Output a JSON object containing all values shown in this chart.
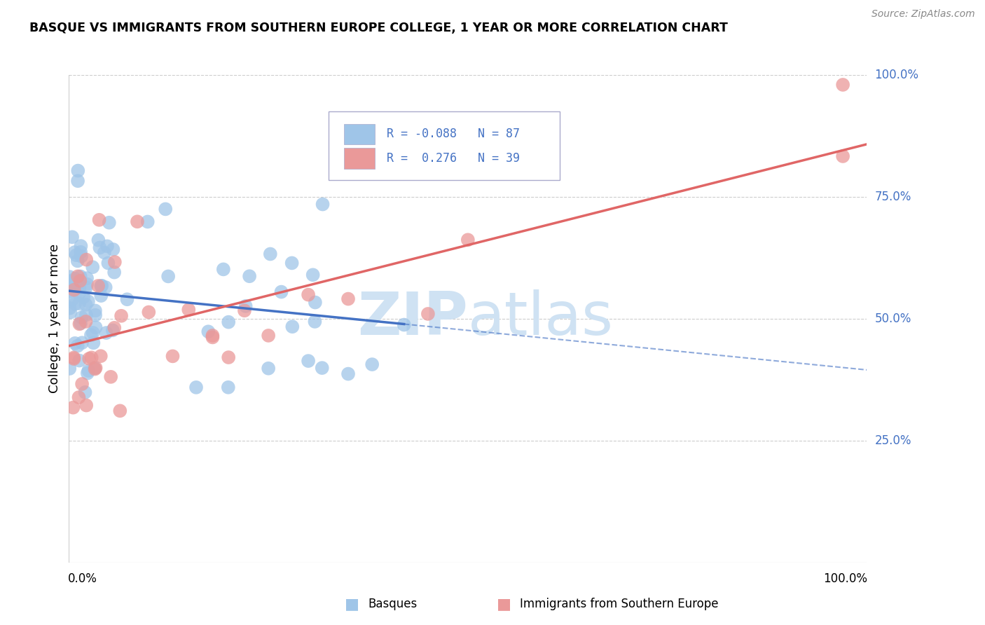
{
  "title": "BASQUE VS IMMIGRANTS FROM SOUTHERN EUROPE COLLEGE, 1 YEAR OR MORE CORRELATION CHART",
  "source": "Source: ZipAtlas.com",
  "ylabel": "College, 1 year or more",
  "ylabel_right_labels": [
    "100.0%",
    "75.0%",
    "50.0%",
    "25.0%"
  ],
  "ylabel_right_values": [
    1.0,
    0.75,
    0.5,
    0.25
  ],
  "xmin": 0.0,
  "xmax": 1.0,
  "ymin": 0.0,
  "ymax": 1.0,
  "legend_label1": "Basques",
  "legend_label2": "Immigrants from Southern Europe",
  "R1": -0.088,
  "N1": 87,
  "R2": 0.276,
  "N2": 39,
  "color_blue": "#9fc5e8",
  "color_pink": "#ea9999",
  "color_blue_line": "#4472c4",
  "color_pink_line": "#e06666",
  "color_blue_text": "#4472c4",
  "watermark_color": "#cfe2f3",
  "grid_color": "#cccccc",
  "blue_intercept": 0.57,
  "blue_slope": -0.1,
  "pink_intercept": 0.43,
  "pink_slope": 0.35
}
